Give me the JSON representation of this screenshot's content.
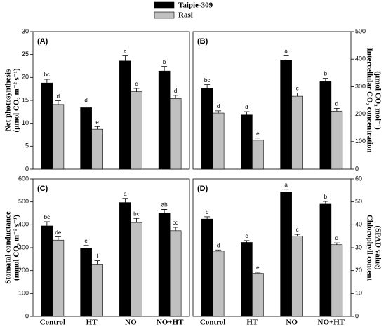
{
  "legend": [
    {
      "name": "Taipie-309",
      "color": "#000000"
    },
    {
      "name": "Rasi",
      "color": "#c0c0c0"
    }
  ],
  "categories": [
    "Control",
    "HT",
    "NO",
    "NO+HT"
  ],
  "chart_data": [
    {
      "type": "bar",
      "label": "(A)",
      "yaxis": "left",
      "ylabel": [
        "Net photosynthesis",
        "(µmol CO₂ m⁻² s⁻¹)"
      ],
      "ylim": [
        0,
        30
      ],
      "yticks": [
        0,
        5,
        10,
        15,
        20,
        25,
        30
      ],
      "series": [
        {
          "values": [
            18.8,
            13.4,
            23.6,
            21.4
          ],
          "errors": [
            0.8,
            0.6,
            1.1,
            1.0
          ],
          "letters": [
            "bc",
            "d",
            "a",
            "b"
          ]
        },
        {
          "values": [
            14.1,
            8.7,
            16.9,
            15.4
          ],
          "errors": [
            0.8,
            0.6,
            0.7,
            0.7
          ],
          "letters": [
            "d",
            "e",
            "c",
            "d"
          ]
        }
      ]
    },
    {
      "type": "bar",
      "label": "(B)",
      "yaxis": "right",
      "ylabel": [
        "Intercellular CO₂ concentration",
        "(µmol CO₂ mol⁻¹)"
      ],
      "ylim": [
        0,
        500
      ],
      "yticks": [
        0,
        100,
        200,
        300,
        400,
        500
      ],
      "series": [
        {
          "values": [
            295,
            197,
            397,
            318
          ],
          "errors": [
            12,
            12,
            15,
            12
          ],
          "letters": [
            "bc",
            "d",
            "a",
            "b"
          ]
        },
        {
          "values": [
            204,
            105,
            265,
            211
          ],
          "errors": [
            8,
            8,
            12,
            10
          ],
          "letters": [
            "d",
            "e",
            "c",
            "d"
          ]
        }
      ]
    },
    {
      "type": "bar",
      "label": "(C)",
      "yaxis": "left",
      "ylabel": [
        "Stomatal conductance",
        "(mmol CO₂ m⁻² s⁻¹)"
      ],
      "ylim": [
        0,
        600
      ],
      "yticks": [
        0,
        100,
        200,
        300,
        400,
        500,
        600
      ],
      "series": [
        {
          "values": [
            395,
            298,
            497,
            452
          ],
          "errors": [
            18,
            12,
            18,
            15
          ],
          "letters": [
            "bc",
            "e",
            "a",
            "ab"
          ]
        },
        {
          "values": [
            333,
            228,
            410,
            374
          ],
          "errors": [
            14,
            15,
            18,
            15
          ],
          "letters": [
            "de",
            "f",
            "bc",
            "cd"
          ]
        }
      ]
    },
    {
      "type": "bar",
      "label": "(D)",
      "yaxis": "right",
      "ylabel": [
        "Chlorophyll content",
        "(SPAD value)"
      ],
      "ylim": [
        0,
        60
      ],
      "yticks": [
        0,
        10,
        20,
        30,
        40,
        50,
        60
      ],
      "series": [
        {
          "values": [
            42.5,
            32.3,
            54.3,
            49.0
          ],
          "errors": [
            1.0,
            0.8,
            1.2,
            1.2
          ],
          "letters": [
            "b",
            "c",
            "a",
            "b"
          ]
        },
        {
          "values": [
            28.5,
            18.8,
            35.0,
            31.3
          ],
          "errors": [
            0.5,
            0.5,
            0.8,
            0.8
          ],
          "letters": [
            "d",
            "e",
            "c",
            "d"
          ]
        }
      ]
    }
  ]
}
